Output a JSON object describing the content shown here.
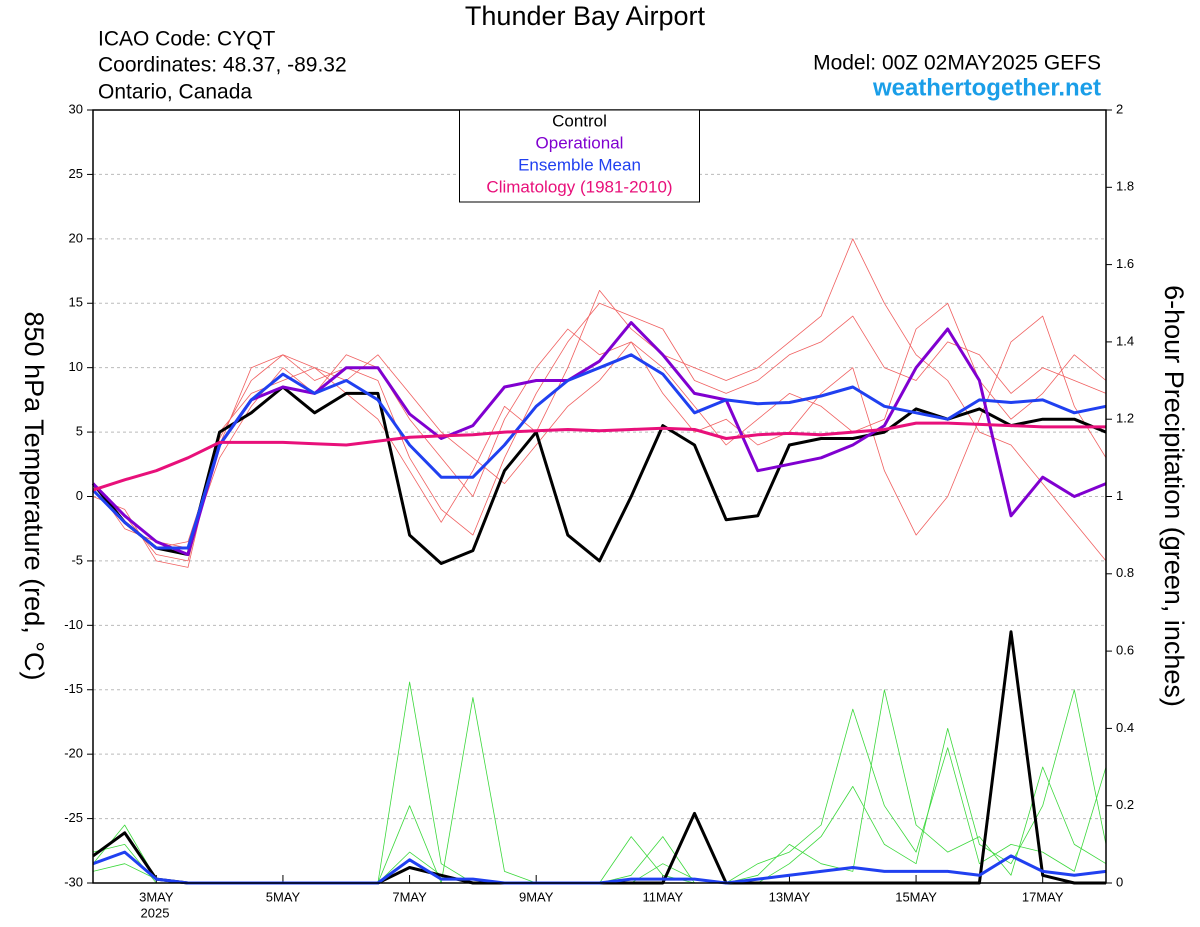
{
  "chart_data": {
    "type": "line",
    "title": "Thunder Bay Airport",
    "info_left": [
      "ICAO Code: CYQT",
      "Coordinates: 48.37, -89.32",
      "Ontario, Canada"
    ],
    "model": "Model: 00Z 02MAY2025 GEFS",
    "site": "weathertogether.net",
    "y_label": "850 hPa Temperature (red, °C)",
    "y2_label": "6-hour Precipitation (green, inches)",
    "year_label": "2025",
    "xlim": [
      0,
      384
    ],
    "xticks": [
      {
        "value": 24,
        "label": "3MAY"
      },
      {
        "value": 72,
        "label": "5MAY"
      },
      {
        "value": 120,
        "label": "7MAY"
      },
      {
        "value": 168,
        "label": "9MAY"
      },
      {
        "value": 216,
        "label": "11MAY"
      },
      {
        "value": 264,
        "label": "13MAY"
      },
      {
        "value": 312,
        "label": "15MAY"
      },
      {
        "value": 360,
        "label": "17MAY"
      }
    ],
    "ylim": [
      -30,
      30
    ],
    "yticks": [
      -30,
      -25,
      -20,
      -15,
      -10,
      -5,
      0,
      5,
      10,
      15,
      20,
      25,
      30
    ],
    "y2lim": [
      0,
      2
    ],
    "y2ticks": [
      0,
      0.2,
      0.4,
      0.6,
      0.8,
      1,
      1.2,
      1.4,
      1.6,
      1.8,
      2
    ],
    "grid": true,
    "legend": "top",
    "x": [
      0,
      12,
      24,
      36,
      48,
      60,
      72,
      84,
      96,
      108,
      120,
      132,
      144,
      156,
      168,
      180,
      192,
      204,
      216,
      228,
      240,
      252,
      264,
      276,
      288,
      300,
      312,
      324,
      336,
      348,
      360,
      372,
      384
    ],
    "members": [
      {
        "color": "#f06060",
        "values": [
          0.5,
          -1.5,
          -4.5,
          -5,
          4.5,
          9,
          11,
          9,
          10,
          9,
          3,
          -1,
          -3,
          3,
          8,
          12,
          15,
          14,
          13,
          9,
          8,
          9,
          11,
          12,
          14,
          10,
          9,
          12,
          11,
          8,
          10,
          9,
          8
        ]
      },
      {
        "color": "#f06060",
        "values": [
          1,
          -2.5,
          -3.5,
          -4,
          3,
          7,
          10,
          8,
          11,
          10,
          6,
          3,
          0,
          6,
          10,
          13,
          11,
          12,
          8,
          5,
          6,
          4,
          5,
          8,
          10,
          2,
          -3,
          0,
          6,
          12,
          14,
          7,
          3
        ]
      },
      {
        "color": "#f06060",
        "values": [
          0,
          -1,
          -5,
          -5.5,
          5,
          8,
          9,
          10,
          8,
          6,
          2,
          -2,
          2,
          7,
          5,
          10,
          16,
          13,
          11,
          10,
          9,
          10,
          12,
          14,
          20,
          15,
          11,
          9,
          5,
          4,
          1,
          -2,
          -5
        ]
      },
      {
        "color": "#f06060",
        "values": [
          1,
          -2,
          -4,
          -3.5,
          4,
          10,
          11,
          10,
          9,
          11,
          8,
          5,
          3,
          1,
          4,
          7,
          9,
          12,
          10,
          7,
          4,
          6,
          8,
          7,
          5,
          6,
          13,
          15,
          9,
          6,
          8,
          11,
          9
        ]
      }
    ],
    "precip_members": [
      {
        "color": "#3cd83c",
        "values": [
          0.05,
          0.15,
          0.01,
          0,
          0,
          0,
          0,
          0,
          0,
          0,
          0.52,
          0.05,
          0,
          0,
          0,
          0,
          0,
          0.02,
          0.12,
          0,
          0,
          0,
          0.05,
          0.12,
          0.25,
          0.1,
          0.05,
          0.4,
          0.1,
          0.05,
          0.2,
          0.5,
          0.1
        ]
      },
      {
        "color": "#3cd83c",
        "values": [
          0.08,
          0.1,
          0,
          0,
          0,
          0,
          0,
          0,
          0,
          0,
          0.2,
          0,
          0.48,
          0.03,
          0,
          0,
          0,
          0,
          0.05,
          0.01,
          0,
          0.02,
          0.1,
          0.05,
          0.03,
          0.5,
          0.15,
          0.08,
          0.12,
          0.02,
          0.3,
          0.1,
          0.05
        ]
      },
      {
        "color": "#3cd83c",
        "values": [
          0.03,
          0.05,
          0.01,
          0,
          0,
          0,
          0,
          0,
          0,
          0,
          0.08,
          0.02,
          0,
          0,
          0,
          0,
          0,
          0.12,
          0.02,
          0,
          0,
          0.05,
          0.08,
          0.15,
          0.45,
          0.2,
          0.08,
          0.35,
          0.05,
          0.1,
          0.08,
          0.03,
          0.3
        ]
      }
    ],
    "series": [
      {
        "name": "Control",
        "color": "#000000",
        "values": [
          1,
          -2,
          -4,
          -4.5,
          5,
          6.5,
          8.5,
          6.5,
          8,
          8,
          -3,
          -5.2,
          -4.2,
          2,
          5,
          -3,
          -5,
          0,
          5.5,
          4,
          -1.8,
          -1.5,
          4,
          4.5,
          4.5,
          5,
          6.8,
          6,
          6.8,
          5.5,
          6,
          6,
          5
        ]
      },
      {
        "name": "Operational",
        "color": "#8000d0",
        "values": [
          1,
          -1.5,
          -3.5,
          -4.5,
          4,
          7.5,
          8.5,
          8,
          10,
          10,
          6.4,
          4.5,
          5.5,
          8.5,
          9,
          9,
          10.5,
          13.5,
          11,
          8,
          7.5,
          2,
          2.5,
          3,
          4,
          5.5,
          10,
          13,
          9,
          -1.5,
          1.5,
          0,
          1
        ]
      },
      {
        "name": "Ensemble Mean",
        "color": "#2040f0",
        "values": [
          0.5,
          -2,
          -4,
          -4,
          4,
          7.5,
          9.5,
          8,
          9,
          7.5,
          4,
          1.5,
          1.5,
          4,
          7,
          9,
          10,
          11,
          9.5,
          6.5,
          7.5,
          7.2,
          7.3,
          7.8,
          8.5,
          7,
          6.5,
          6,
          7.5,
          7.3,
          7.5,
          6.5,
          7
        ]
      },
      {
        "name": "Climatology (1981-2010)",
        "color": "#e8107a",
        "values": [
          0.5,
          1.3,
          2,
          3,
          4.2,
          4.2,
          4.2,
          4.1,
          4,
          4.3,
          4.6,
          4.7,
          4.8,
          5,
          5.1,
          5.2,
          5.1,
          5.2,
          5.3,
          5.2,
          4.5,
          4.8,
          4.9,
          4.8,
          5,
          5.2,
          5.7,
          5.7,
          5.6,
          5.5,
          5.4,
          5.4,
          5.4
        ]
      }
    ],
    "precip_series": [
      {
        "color": "#000000",
        "axis": "y2",
        "values": [
          0.07,
          0.13,
          0.01,
          0,
          0,
          0,
          0,
          0,
          0,
          0,
          0.04,
          0.02,
          0,
          0,
          0,
          0,
          0,
          0,
          0,
          0.18,
          0,
          0,
          0,
          0,
          0,
          0,
          0,
          0,
          0,
          0.65,
          0.02,
          0,
          0
        ]
      },
      {
        "color": "#2040f0",
        "axis": "y2",
        "values": [
          0.05,
          0.08,
          0.01,
          0,
          0,
          0,
          0,
          0,
          0,
          0,
          0.06,
          0.01,
          0.01,
          0,
          0,
          0,
          0,
          0.01,
          0.01,
          0.01,
          0,
          0.01,
          0.02,
          0.03,
          0.04,
          0.03,
          0.03,
          0.03,
          0.02,
          0.07,
          0.03,
          0.02,
          0.03
        ]
      }
    ]
  }
}
